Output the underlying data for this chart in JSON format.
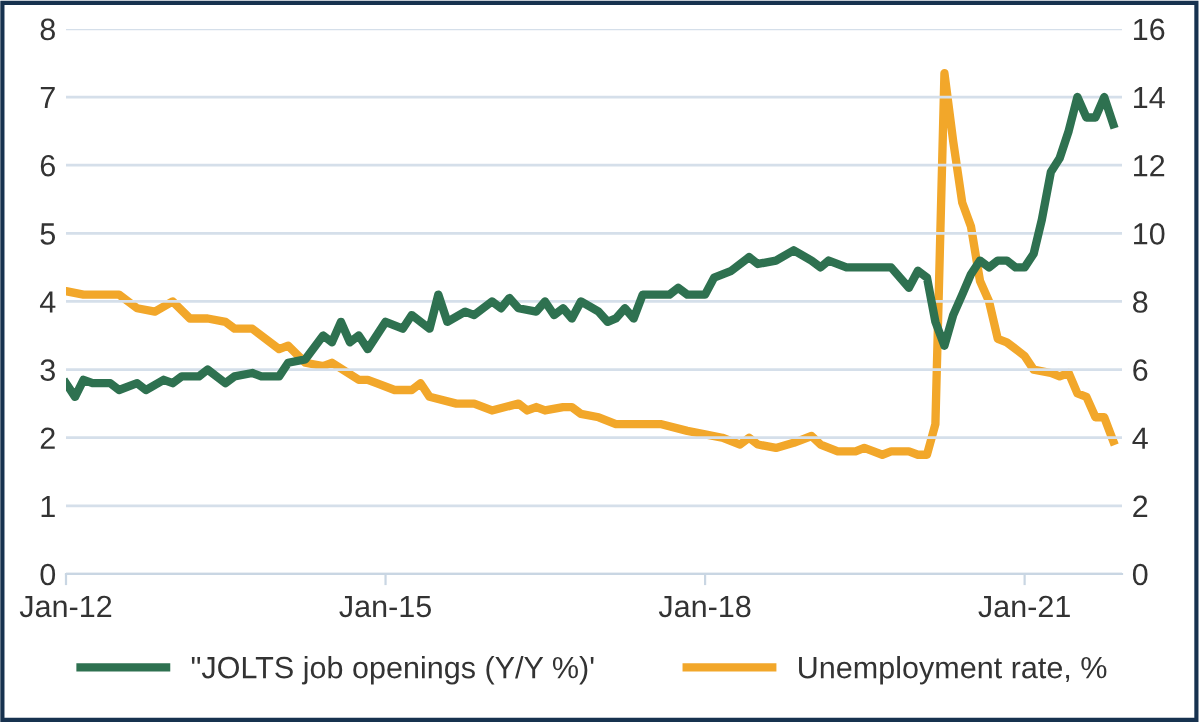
{
  "chart_data": {
    "type": "line",
    "xlim": [
      "2012-01",
      "2021-12"
    ],
    "xticks": [
      {
        "value": "2012-01",
        "label": "Jan-12"
      },
      {
        "value": "2015-01",
        "label": "Jan-15"
      },
      {
        "value": "2018-01",
        "label": "Jan-18"
      },
      {
        "value": "2021-01",
        "label": "Jan-21"
      }
    ],
    "ylim": [
      0,
      8
    ],
    "yticks": [
      0,
      1,
      2,
      3,
      4,
      5,
      6,
      7,
      8
    ],
    "y2lim": [
      0,
      16
    ],
    "y2ticks": [
      0,
      2,
      4,
      6,
      8,
      10,
      12,
      14,
      16
    ],
    "grid": "y",
    "legend": "bottom",
    "marker": "none",
    "line_style": "solid",
    "series": [
      {
        "name": "\"JOLTS job openings (Y/Y %)'",
        "color": "#2e7150",
        "axis": "y",
        "x": [
          "2012-01",
          "2012-02",
          "2012-03",
          "2012-04",
          "2012-06",
          "2012-07",
          "2012-09",
          "2012-10",
          "2012-12",
          "2013-01",
          "2013-02",
          "2013-04",
          "2013-05",
          "2013-07",
          "2013-08",
          "2013-10",
          "2013-11",
          "2014-01",
          "2014-02",
          "2014-04",
          "2014-06",
          "2014-07",
          "2014-08",
          "2014-09",
          "2014-10",
          "2014-11",
          "2015-01",
          "2015-03",
          "2015-04",
          "2015-06",
          "2015-07",
          "2015-08",
          "2015-10",
          "2015-11",
          "2016-01",
          "2016-02",
          "2016-03",
          "2016-04",
          "2016-06",
          "2016-07",
          "2016-08",
          "2016-09",
          "2016-10",
          "2016-11",
          "2017-01",
          "2017-02",
          "2017-03",
          "2017-04",
          "2017-05",
          "2017-06",
          "2017-09",
          "2017-10",
          "2017-11",
          "2018-01",
          "2018-02",
          "2018-04",
          "2018-06",
          "2018-07",
          "2018-09",
          "2018-11",
          "2019-01",
          "2019-02",
          "2019-03",
          "2019-05",
          "2019-07",
          "2019-10",
          "2019-12",
          "2020-01",
          "2020-02",
          "2020-03",
          "2020-04",
          "2020-05",
          "2020-06",
          "2020-07",
          "2020-08",
          "2020-09",
          "2020-10",
          "2020-11",
          "2020-12",
          "2021-01",
          "2021-02",
          "2021-03",
          "2021-04",
          "2021-05",
          "2021-06",
          "2021-07",
          "2021-08",
          "2021-09",
          "2021-10",
          "2021-11"
        ],
        "values": [
          2.8,
          2.6,
          2.85,
          2.8,
          2.8,
          2.7,
          2.8,
          2.7,
          2.85,
          2.8,
          2.9,
          2.9,
          3.0,
          2.8,
          2.9,
          2.95,
          2.9,
          2.9,
          3.1,
          3.15,
          3.5,
          3.4,
          3.7,
          3.4,
          3.5,
          3.3,
          3.7,
          3.6,
          3.8,
          3.6,
          4.1,
          3.7,
          3.85,
          3.8,
          4.0,
          3.9,
          4.05,
          3.9,
          3.85,
          4.0,
          3.8,
          3.9,
          3.75,
          4.0,
          3.85,
          3.7,
          3.75,
          3.9,
          3.75,
          4.1,
          4.1,
          4.2,
          4.1,
          4.1,
          4.35,
          4.45,
          4.65,
          4.55,
          4.6,
          4.75,
          4.6,
          4.5,
          4.6,
          4.5,
          4.5,
          4.5,
          4.2,
          4.45,
          4.35,
          3.7,
          3.35,
          3.8,
          4.1,
          4.4,
          4.6,
          4.5,
          4.6,
          4.6,
          4.5,
          4.5,
          4.7,
          5.2,
          5.9,
          6.1,
          6.5,
          7.0,
          6.7,
          6.7,
          7.0,
          6.6
        ]
      },
      {
        "name": "Unemployment rate, %",
        "color": "#f2a72a",
        "axis": "y2",
        "x": [
          "2012-01",
          "2012-03",
          "2012-07",
          "2012-09",
          "2012-11",
          "2013-01",
          "2013-03",
          "2013-05",
          "2013-07",
          "2013-08",
          "2013-10",
          "2014-01",
          "2014-02",
          "2014-04",
          "2014-06",
          "2014-07",
          "2014-10",
          "2014-11",
          "2014-12",
          "2015-02",
          "2015-04",
          "2015-05",
          "2015-06",
          "2015-09",
          "2015-11",
          "2016-01",
          "2016-04",
          "2016-05",
          "2016-06",
          "2016-07",
          "2016-09",
          "2016-10",
          "2016-11",
          "2017-01",
          "2017-03",
          "2017-06",
          "2017-08",
          "2017-11",
          "2018-01",
          "2018-03",
          "2018-05",
          "2018-06",
          "2018-07",
          "2018-09",
          "2018-11",
          "2019-01",
          "2019-02",
          "2019-04",
          "2019-06",
          "2019-07",
          "2019-09",
          "2019-10",
          "2019-12",
          "2020-01",
          "2020-02",
          "2020-03",
          "2020-04",
          "2020-05",
          "2020-06",
          "2020-07",
          "2020-08",
          "2020-09",
          "2020-10",
          "2020-11",
          "2021-01",
          "2021-02",
          "2021-04",
          "2021-05",
          "2021-06",
          "2021-07",
          "2021-08",
          "2021-09",
          "2021-10",
          "2021-11"
        ],
        "values": [
          8.3,
          8.2,
          8.2,
          7.8,
          7.7,
          8.0,
          7.5,
          7.5,
          7.4,
          7.2,
          7.2,
          6.6,
          6.7,
          6.2,
          6.1,
          6.2,
          5.7,
          5.7,
          5.6,
          5.4,
          5.4,
          5.6,
          5.2,
          5.0,
          5.0,
          4.8,
          5.0,
          4.8,
          4.9,
          4.8,
          4.9,
          4.9,
          4.7,
          4.6,
          4.4,
          4.4,
          4.4,
          4.2,
          4.1,
          4.0,
          3.8,
          4.0,
          3.8,
          3.7,
          3.85,
          4.05,
          3.8,
          3.6,
          3.6,
          3.7,
          3.5,
          3.6,
          3.6,
          3.5,
          3.5,
          4.4,
          14.7,
          12.7,
          10.9,
          10.2,
          8.6,
          8.0,
          6.9,
          6.8,
          6.4,
          6.0,
          5.9,
          5.8,
          5.9,
          5.3,
          5.2,
          4.6,
          4.6,
          3.9
        ]
      }
    ]
  }
}
